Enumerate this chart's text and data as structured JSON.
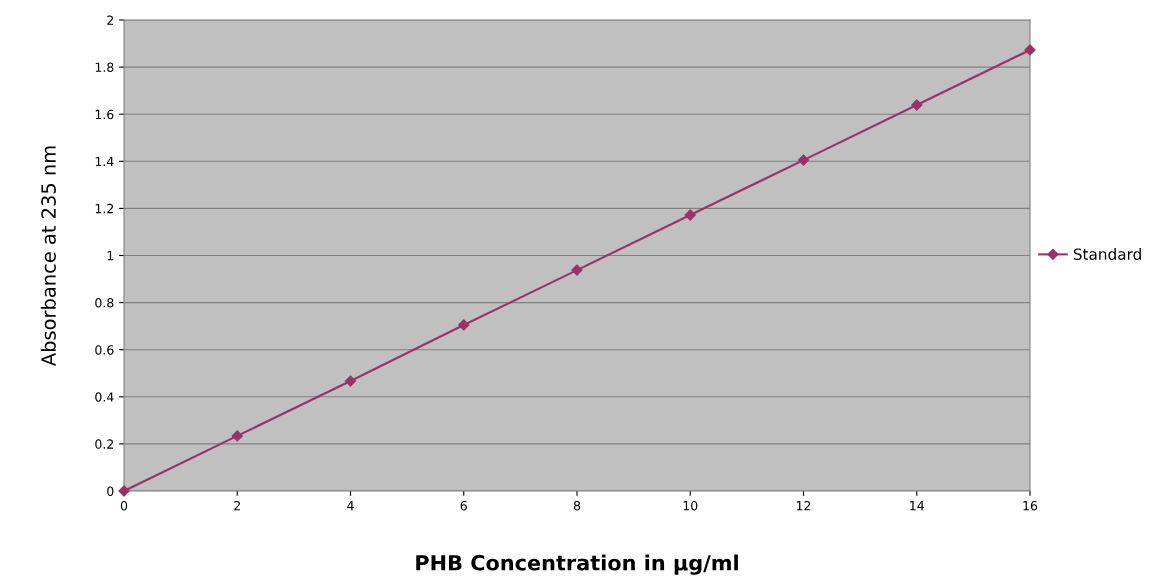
{
  "chart_data": {
    "type": "line",
    "xlabel": "PHB Concentration in µg/ml",
    "ylabel": "Absorbance at 235 nm",
    "x": [
      0,
      2,
      4,
      6,
      8,
      10,
      12,
      14,
      16
    ],
    "series": [
      {
        "name": "Standard",
        "color": "#993366",
        "values": [
          0,
          0.234,
          0.467,
          0.705,
          0.938,
          1.172,
          1.405,
          1.639,
          1.873
        ]
      }
    ],
    "xlim": [
      0,
      16
    ],
    "xticks": [
      0,
      2,
      4,
      6,
      8,
      10,
      12,
      14,
      16
    ],
    "ylim": [
      0,
      2
    ],
    "yticks": [
      0,
      0.2,
      0.4,
      0.6,
      0.8,
      1,
      1.2,
      1.4,
      1.6,
      1.8,
      2
    ],
    "grid": "y",
    "legend": "right",
    "marker": "diamond",
    "line_style": "solid"
  }
}
